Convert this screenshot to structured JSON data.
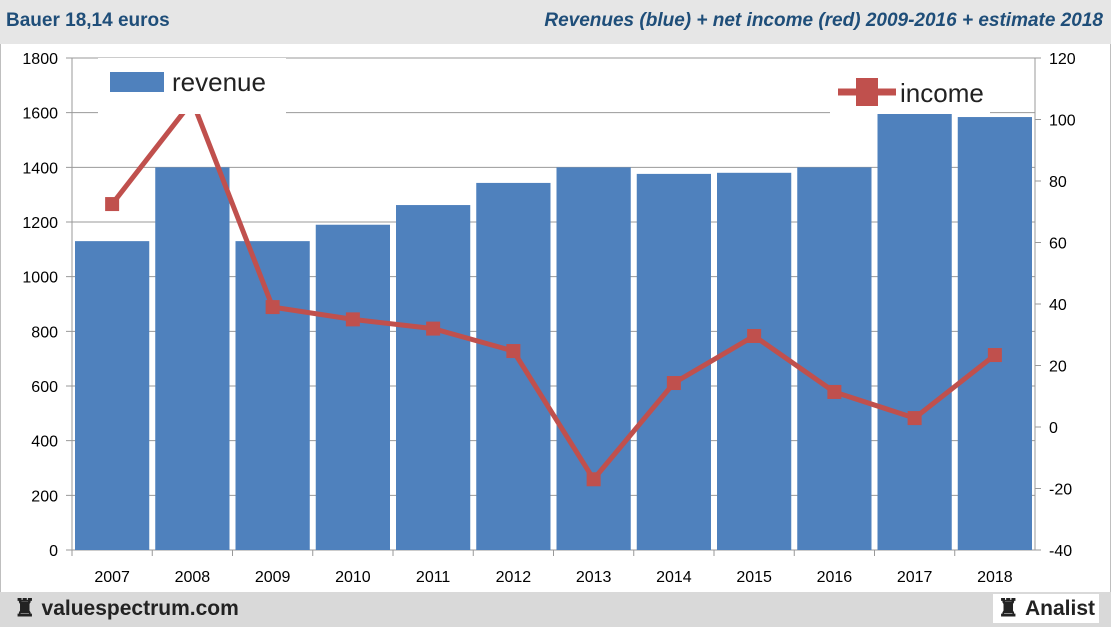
{
  "header": {
    "left_title": "Bauer 18,14 euros",
    "right_title": "Revenues (blue) + net income (red) 2009-2016 + estimate 2018"
  },
  "footer": {
    "left_brand": "valuespectrum.com",
    "right_brand": "Analist",
    "brand_icon": "rook-icon"
  },
  "colors": {
    "revenue": "#4f81bd",
    "income": "#c0504d"
  },
  "chart_data": {
    "type": "bar+line",
    "categories": [
      "2007",
      "2008",
      "2009",
      "2010",
      "2011",
      "2012",
      "2013",
      "2014",
      "2015",
      "2016",
      "2017",
      "2018"
    ],
    "series": [
      {
        "name": "revenue",
        "axis": "left",
        "type": "bar",
        "values": [
          1130,
          1400,
          1130,
          1190,
          1262,
          1343,
          1400,
          1376,
          1380,
          1400,
          1606,
          1584
        ]
      },
      {
        "name": "income",
        "axis": "right",
        "type": "line",
        "values": [
          72.5,
          106,
          39,
          35,
          32,
          24.7,
          -17,
          14.3,
          29.6,
          11.4,
          2.9,
          23.4
        ]
      }
    ],
    "left_axis": {
      "range": [
        0,
        1800
      ],
      "ticks": [
        "0",
        "200",
        "400",
        "600",
        "800",
        "1000",
        "1200",
        "1400",
        "1600",
        "1800"
      ]
    },
    "right_axis": {
      "range": [
        -40,
        120
      ],
      "ticks": [
        "-40",
        "-20",
        "0",
        "20",
        "40",
        "60",
        "80",
        "100",
        "120"
      ]
    },
    "grid": true,
    "legend": [
      {
        "label": "revenue",
        "placement": "top-left"
      },
      {
        "label": "income",
        "placement": "top-right"
      }
    ]
  }
}
